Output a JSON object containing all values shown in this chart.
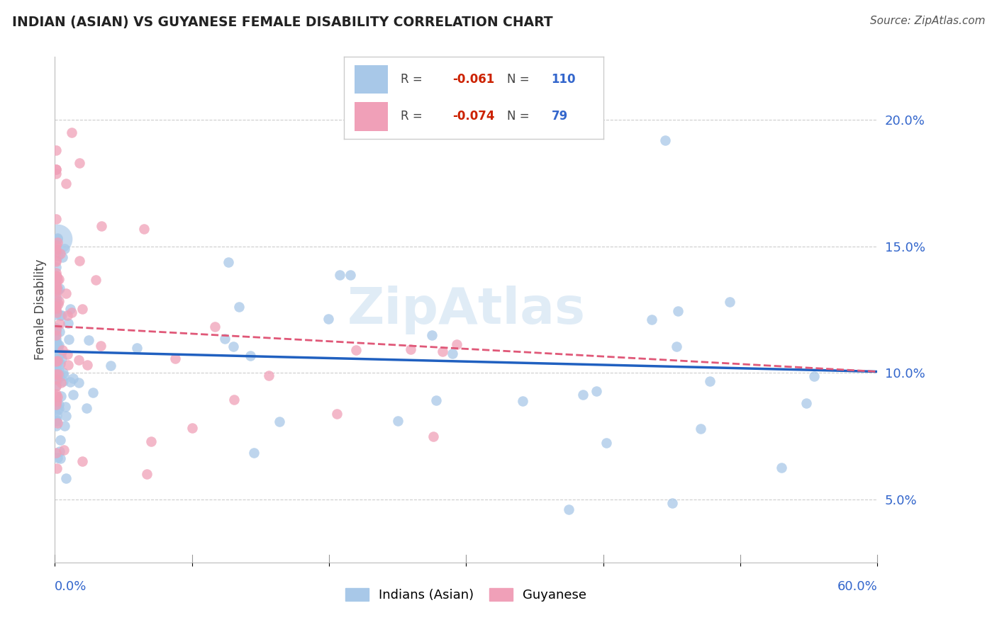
{
  "title": "INDIAN (ASIAN) VS GUYANESE FEMALE DISABILITY CORRELATION CHART",
  "source": "Source: ZipAtlas.com",
  "ylabel": "Female Disability",
  "yaxis_labels": [
    "5.0%",
    "10.0%",
    "15.0%",
    "20.0%"
  ],
  "yaxis_values": [
    0.05,
    0.1,
    0.15,
    0.2
  ],
  "xlim": [
    0.0,
    0.6
  ],
  "ylim": [
    0.025,
    0.225
  ],
  "legend_r_indian": "-0.061",
  "legend_n_indian": "110",
  "legend_r_guyanese": "-0.074",
  "legend_n_guyanese": "79",
  "indian_color": "#a8c8e8",
  "guyanese_color": "#f0a0b8",
  "indian_line_color": "#2060c0",
  "guyanese_line_color": "#e05878",
  "background_color": "#ffffff",
  "indian_line_start_y": 0.1085,
  "indian_line_end_y": 0.1005,
  "guyanese_line_start_y": 0.1185,
  "guyanese_line_end_y": 0.1005
}
